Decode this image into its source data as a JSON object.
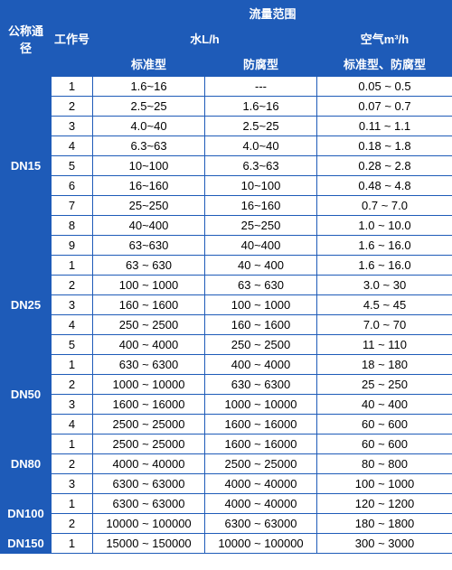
{
  "headers": {
    "dn": "公称通径",
    "workNo": "工作号",
    "flowRange": "流量范围",
    "water": "水L/h",
    "air": "空气m³/h",
    "standard": "标准型",
    "corrosion": "防腐型",
    "airSub": "标准型、防腐型"
  },
  "groups": [
    {
      "dn": "DN15",
      "rows": [
        {
          "no": "1",
          "std": "1.6~16",
          "cor": "---",
          "air": "0.05 ~ 0.5"
        },
        {
          "no": "2",
          "std": "2.5~25",
          "cor": "1.6~16",
          "air": "0.07 ~ 0.7"
        },
        {
          "no": "3",
          "std": "4.0~40",
          "cor": "2.5~25",
          "air": "0.11 ~ 1.1"
        },
        {
          "no": "4",
          "std": "6.3~63",
          "cor": "4.0~40",
          "air": "0.18 ~ 1.8"
        },
        {
          "no": "5",
          "std": "10~100",
          "cor": "6.3~63",
          "air": "0.28 ~ 2.8"
        },
        {
          "no": "6",
          "std": "16~160",
          "cor": "10~100",
          "air": "0.48 ~ 4.8"
        },
        {
          "no": "7",
          "std": "25~250",
          "cor": "16~160",
          "air": "0.7 ~ 7.0"
        },
        {
          "no": "8",
          "std": "40~400",
          "cor": "25~250",
          "air": "1.0 ~ 10.0"
        },
        {
          "no": "9",
          "std": "63~630",
          "cor": "40~400",
          "air": "1.6 ~ 16.0"
        }
      ]
    },
    {
      "dn": "DN25",
      "rows": [
        {
          "no": "1",
          "std": "63 ~ 630",
          "cor": "40 ~ 400",
          "air": "1.6 ~ 16.0"
        },
        {
          "no": "2",
          "std": "100 ~ 1000",
          "cor": "63 ~ 630",
          "air": "3.0 ~ 30"
        },
        {
          "no": "3",
          "std": "160 ~ 1600",
          "cor": "100 ~ 1000",
          "air": "4.5 ~ 45"
        },
        {
          "no": "4",
          "std": "250 ~ 2500",
          "cor": "160 ~ 1600",
          "air": "7.0 ~ 70"
        },
        {
          "no": "5",
          "std": "400 ~ 4000",
          "cor": "250 ~ 2500",
          "air": "11 ~ 110"
        }
      ]
    },
    {
      "dn": "DN50",
      "rows": [
        {
          "no": "1",
          "std": "630 ~ 6300",
          "cor": "400 ~ 4000",
          "air": "18 ~ 180"
        },
        {
          "no": "2",
          "std": "1000 ~ 10000",
          "cor": "630 ~ 6300",
          "air": "25 ~ 250"
        },
        {
          "no": "3",
          "std": "1600 ~ 16000",
          "cor": "1000 ~ 10000",
          "air": "40 ~ 400"
        },
        {
          "no": "4",
          "std": "2500 ~ 25000",
          "cor": "1600 ~ 16000",
          "air": "60 ~ 600"
        }
      ]
    },
    {
      "dn": "DN80",
      "rows": [
        {
          "no": "1",
          "std": "2500 ~ 25000",
          "cor": "1600 ~ 16000",
          "air": "60 ~ 600"
        },
        {
          "no": "2",
          "std": "4000 ~ 40000",
          "cor": "2500 ~ 25000",
          "air": "80 ~ 800"
        },
        {
          "no": "3",
          "std": "6300 ~ 63000",
          "cor": "4000 ~ 40000",
          "air": "100 ~ 1000"
        }
      ]
    },
    {
      "dn": "DN100",
      "rows": [
        {
          "no": "1",
          "std": "6300 ~ 63000",
          "cor": "4000 ~ 40000",
          "air": "120 ~ 1200"
        },
        {
          "no": "2",
          "std": "10000 ~ 100000",
          "cor": "6300 ~ 63000",
          "air": "180 ~ 1800"
        }
      ]
    },
    {
      "dn": "DN150",
      "rows": [
        {
          "no": "1",
          "std": "15000 ~ 150000",
          "cor": "10000 ~ 100000",
          "air": "300 ~ 3000"
        }
      ]
    }
  ],
  "style": {
    "headerBg": "#1e5bb8",
    "headerColor": "#ffffff",
    "cellBg": "#ffffff",
    "cellColor": "#000000",
    "borderColor": "#1e5bb8",
    "fontSize": 13,
    "tableWidth": 500
  }
}
